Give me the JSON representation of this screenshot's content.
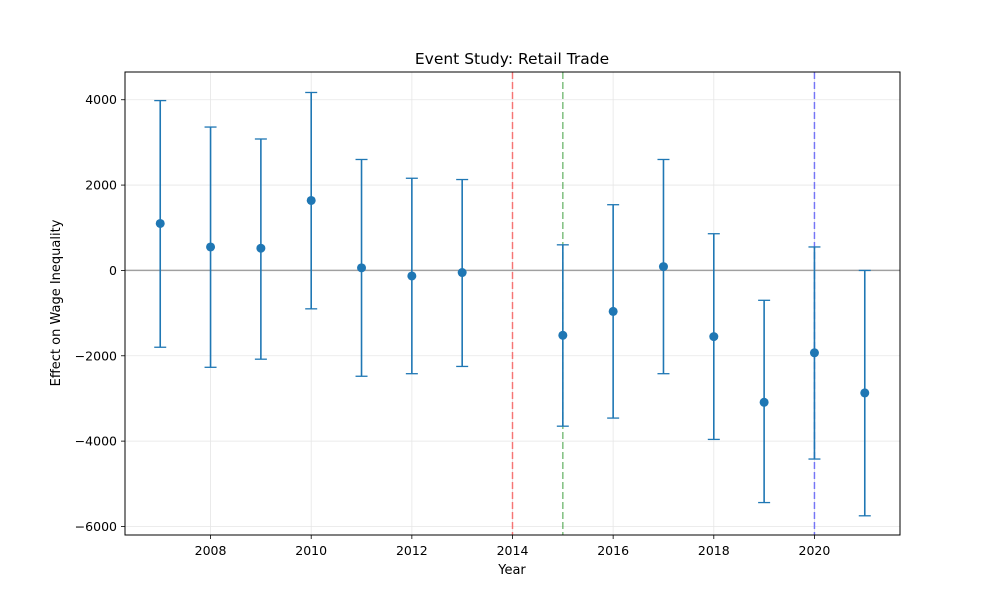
{
  "chart_data": {
    "type": "scatter",
    "title": "Event Study: Retail Trade",
    "xlabel": "Year",
    "ylabel": "Effect on Wage Inequality",
    "xlim": [
      2006.3,
      2021.7
    ],
    "ylim": [
      -6200,
      4650
    ],
    "x_ticks": [
      2008,
      2010,
      2012,
      2014,
      2016,
      2018,
      2020
    ],
    "x_tick_labels": [
      "2008",
      "2010",
      "2012",
      "2014",
      "2016",
      "2018",
      "2020"
    ],
    "y_ticks": [
      -6000,
      -4000,
      -2000,
      0,
      2000,
      4000
    ],
    "y_tick_labels": [
      "−6000",
      "−4000",
      "−2000",
      "0",
      "2000",
      "4000"
    ],
    "grid": true,
    "series": [
      {
        "color": "#1f77b4",
        "points": [
          {
            "x": 2007,
            "y": 1100,
            "lower": -1800,
            "upper": 3980
          },
          {
            "x": 2008,
            "y": 550,
            "lower": -2270,
            "upper": 3360
          },
          {
            "x": 2009,
            "y": 520,
            "lower": -2080,
            "upper": 3080
          },
          {
            "x": 2010,
            "y": 1640,
            "lower": -900,
            "upper": 4170
          },
          {
            "x": 2011,
            "y": 60,
            "lower": -2480,
            "upper": 2600
          },
          {
            "x": 2012,
            "y": -130,
            "lower": -2420,
            "upper": 2160
          },
          {
            "x": 2013,
            "y": -50,
            "lower": -2250,
            "upper": 2130
          },
          {
            "x": 2015,
            "y": -1520,
            "lower": -3650,
            "upper": 600
          },
          {
            "x": 2016,
            "y": -960,
            "lower": -3460,
            "upper": 1540
          },
          {
            "x": 2017,
            "y": 90,
            "lower": -2420,
            "upper": 2600
          },
          {
            "x": 2018,
            "y": -1550,
            "lower": -3960,
            "upper": 860
          },
          {
            "x": 2019,
            "y": -3090,
            "lower": -5440,
            "upper": -700
          },
          {
            "x": 2020,
            "y": -1930,
            "lower": -4420,
            "upper": 550
          },
          {
            "x": 2021,
            "y": -2870,
            "lower": -5750,
            "upper": 0
          }
        ]
      }
    ],
    "reference_lines": [
      {
        "orientation": "horizontal",
        "value": 0,
        "color": "#808080",
        "style": "solid"
      },
      {
        "orientation": "vertical",
        "value": 2014,
        "color": "#ff0000",
        "style": "dashed"
      },
      {
        "orientation": "vertical",
        "value": 2015,
        "color": "#008000",
        "style": "dashed"
      },
      {
        "orientation": "vertical",
        "value": 2020,
        "color": "#0000ff",
        "style": "dashed"
      }
    ]
  }
}
